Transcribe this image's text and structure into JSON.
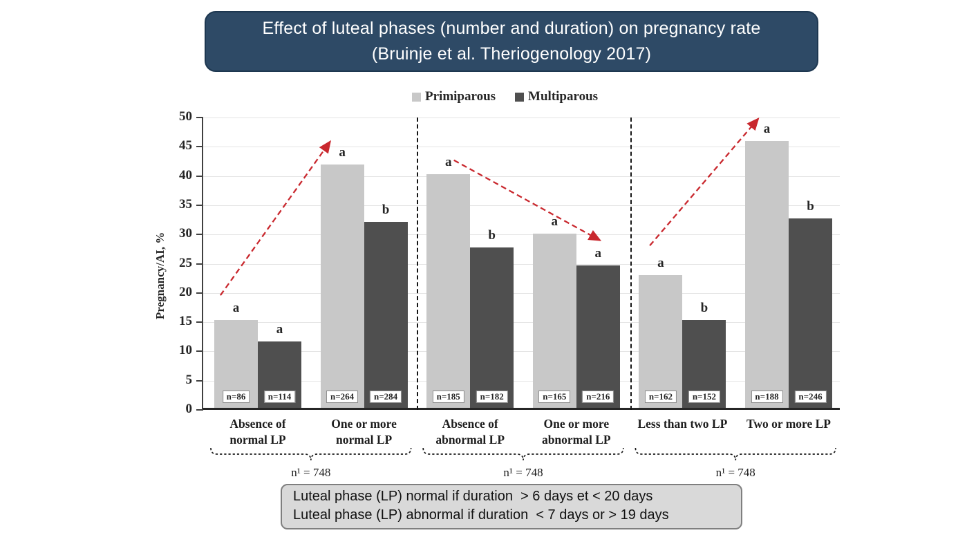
{
  "title": {
    "line1": "Effect of luteal phases (number and duration) on pregnancy rate",
    "line2": "(Bruinje et al. Theriogenology 2017)"
  },
  "legend": [
    {
      "label": "Primiparous",
      "color": "#c8c8c8"
    },
    {
      "label": "Multiparous",
      "color": "#4f4f4f"
    }
  ],
  "colors": {
    "title_bg": "#2e4a66",
    "title_text": "#ffffff",
    "footnote_bg": "#d9d9d9",
    "footnote_border": "#7f7f7f",
    "arrow": "#c9282e"
  },
  "footnote": {
    "line1": "Luteal phase (LP) normal if duration  > 6 days et < 20 days",
    "line2": "Luteal phase (LP) abnormal if duration  < 7 days or > 19 days"
  },
  "chart_data": {
    "type": "bar",
    "title": "Effect of luteal phases (number and duration) on pregnancy rate (Bruinje et al. Theriogenology 2017)",
    "xlabel": "",
    "ylabel": "Pregnancy/AI, %",
    "ylim": [
      0,
      50
    ],
    "ytick_step": 5,
    "grid": true,
    "legend_position": "top",
    "categories": [
      "Absence of normal LP",
      "One or more normal LP",
      "Absence of abnormal LP",
      "One or more abnormal LP",
      "Less than two LP",
      "Two or more LP"
    ],
    "category_lines": [
      [
        "Absence of",
        "normal LP"
      ],
      [
        "One or more",
        "normal LP"
      ],
      [
        "Absence of",
        "abnormal LP"
      ],
      [
        "One or more",
        "abnormal LP"
      ],
      [
        "Less than two LP"
      ],
      [
        "Two or more LP"
      ]
    ],
    "series": [
      {
        "name": "Primiparous",
        "color": "#c8c8c8",
        "values": [
          15.0,
          41.6,
          40.0,
          29.8,
          22.7,
          45.6
        ],
        "letters": [
          "a",
          "a",
          "a",
          "a",
          "a",
          "a"
        ],
        "n": [
          86,
          264,
          185,
          165,
          162,
          188
        ]
      },
      {
        "name": "Multiparous",
        "color": "#4f4f4f",
        "values": [
          11.4,
          31.8,
          27.4,
          24.4,
          15.0,
          32.4
        ],
        "letters": [
          "a",
          "b",
          "b",
          "a",
          "b",
          "b"
        ],
        "n": [
          114,
          284,
          182,
          216,
          152,
          246
        ]
      }
    ],
    "group_totals": [
      "n¹ = 748",
      "n¹ = 748",
      "n¹ = 748"
    ],
    "annotations": {
      "separators_x": [
        0.335,
        0.669
      ],
      "arrows": [
        {
          "from_x": 0.027,
          "from_y": 19.6,
          "to_x": 0.199,
          "to_y": 45.9,
          "direction": "increase"
        },
        {
          "from_x": 0.393,
          "from_y": 42.7,
          "to_x": 0.622,
          "to_y": 29.0,
          "direction": "decrease"
        },
        {
          "from_x": 0.7,
          "from_y": 28.1,
          "to_x": 0.87,
          "to_y": 49.8,
          "direction": "increase"
        }
      ]
    }
  }
}
